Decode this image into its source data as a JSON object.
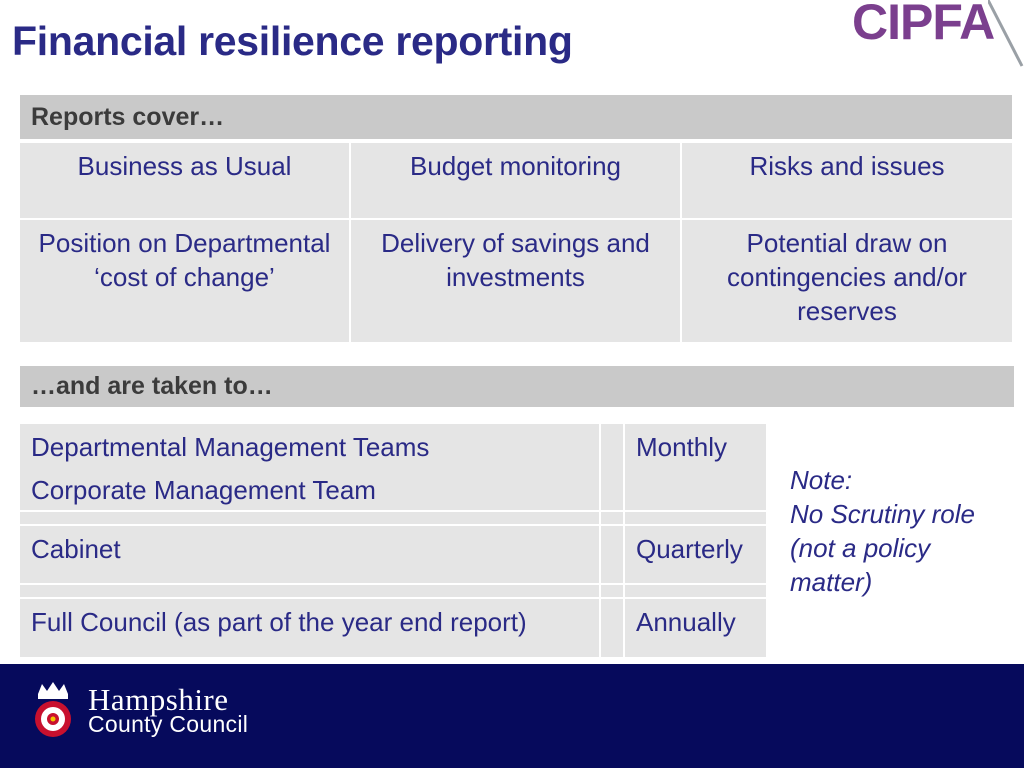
{
  "slide": {
    "title": "Financial resilience reporting"
  },
  "brand": {
    "top_logo": "CIPFA",
    "footer_logo_line1": "Hampshire",
    "footer_logo_line2": "County Council",
    "footer_color": "#060a5c",
    "accent_color": "#2a2a86"
  },
  "reports": {
    "header": "Reports cover…",
    "items": [
      "Business as Usual",
      "Budget monitoring",
      "Risks and issues",
      "Position on Departmental ‘cost of change’",
      "Delivery of savings and investments",
      "Potential draw on contingencies and/or reserves"
    ]
  },
  "destinations": {
    "header": "…and are taken to…",
    "rows": [
      {
        "lines": [
          "Departmental Management Teams",
          "Corporate Management Team"
        ],
        "frequency": "Monthly"
      },
      {
        "lines": [
          "Cabinet"
        ],
        "frequency": "Quarterly"
      },
      {
        "lines": [
          "Full Council (as part of the year end report)"
        ],
        "frequency": "Annually"
      }
    ]
  },
  "note": {
    "label": "Note:",
    "line1": "No Scrutiny role",
    "line2": "(not a policy",
    "line3": "matter)"
  }
}
